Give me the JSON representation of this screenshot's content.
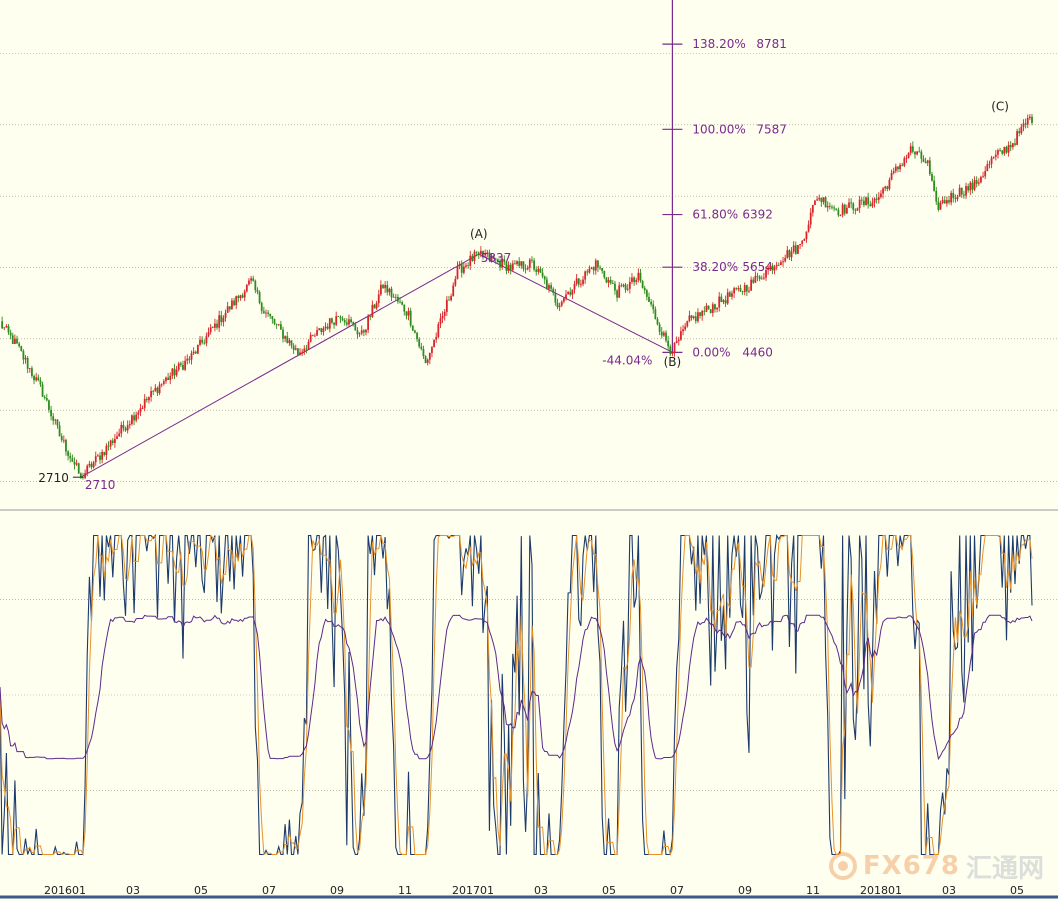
{
  "chart_data": [
    {
      "type": "candlestick",
      "colors": {
        "up": "#d9242b",
        "down": "#2e8b1e",
        "wave": "#7a2a8c",
        "fib": "#7a2a8c",
        "grid": "#9a9a80"
      },
      "price_range": [
        2250,
        9400
      ],
      "grid_levels": [
        2650,
        3650,
        4650,
        5650,
        6650,
        7650,
        8650
      ],
      "control_points": [
        [
          0,
          4870
        ],
        [
          8,
          4550
        ],
        [
          20,
          3900
        ],
        [
          28,
          3300
        ],
        [
          38,
          2710
        ],
        [
          48,
          3050
        ],
        [
          62,
          3550
        ],
        [
          75,
          4000
        ],
        [
          90,
          4400
        ],
        [
          104,
          4950
        ],
        [
          118,
          5450
        ],
        [
          124,
          5050
        ],
        [
          140,
          4450
        ],
        [
          150,
          4750
        ],
        [
          160,
          5000
        ],
        [
          170,
          4700
        ],
        [
          180,
          5400
        ],
        [
          192,
          5000
        ],
        [
          200,
          4300
        ],
        [
          208,
          4950
        ],
        [
          215,
          5600
        ],
        [
          225,
          5850
        ],
        [
          240,
          5650
        ],
        [
          250,
          5700
        ],
        [
          256,
          5450
        ],
        [
          262,
          5150
        ],
        [
          270,
          5400
        ],
        [
          280,
          5700
        ],
        [
          290,
          5300
        ],
        [
          300,
          5500
        ],
        [
          306,
          5100
        ],
        [
          312,
          4680
        ],
        [
          316,
          4460
        ],
        [
          324,
          4900
        ],
        [
          340,
          5200
        ],
        [
          352,
          5400
        ],
        [
          368,
          5800
        ],
        [
          376,
          5950
        ],
        [
          384,
          6650
        ],
        [
          394,
          6450
        ],
        [
          412,
          6600
        ],
        [
          422,
          7050
        ],
        [
          428,
          7300
        ],
        [
          436,
          7100
        ],
        [
          440,
          6500
        ],
        [
          450,
          6700
        ],
        [
          458,
          6800
        ],
        [
          466,
          7150
        ],
        [
          476,
          7400
        ],
        [
          484,
          7750
        ]
      ],
      "waves": [
        {
          "from": [
            38,
            2710
          ],
          "to": [
            225,
            5837
          ]
        },
        {
          "from": [
            225,
            5837
          ],
          "to": [
            316,
            4460
          ]
        }
      ],
      "wave_labels": [
        {
          "text": "(A)",
          "at": [
            225,
            6060
          ]
        },
        {
          "text": "(B)",
          "at": [
            316,
            4270
          ]
        },
        {
          "text": "(C)",
          "at": [
            470,
            7850
          ]
        }
      ],
      "low_marker": {
        "left_label": "2710",
        "right_label": "2710",
        "value": 2710
      },
      "peak_label": "5837",
      "retracement_label": "-44.04%",
      "fibonacci": {
        "base_value": 4460,
        "levels": [
          {
            "ratio": "0.00%",
            "value": "4460",
            "price": 4460
          },
          {
            "ratio": "38.20%",
            "value": "5654",
            "price": 5654
          },
          {
            "ratio": "61.80%",
            "value": "6392",
            "price": 6392
          },
          {
            "ratio": "100.00%",
            "value": "7587",
            "price": 7587
          },
          {
            "ratio": "138.20%",
            "value": "8781",
            "price": 8781
          }
        ]
      }
    },
    {
      "type": "line",
      "ylim": [
        -8,
        108
      ],
      "grid_levels": [
        20,
        50,
        80
      ],
      "series": [
        {
          "color": "#1c3a6b"
        },
        {
          "color": "#e8922a"
        },
        {
          "color": "#5b2a8c"
        }
      ]
    }
  ],
  "x_axis": {
    "ticks": [
      "201601",
      "03",
      "05",
      "07",
      "09",
      "11",
      "201701",
      "03",
      "05",
      "07",
      "09",
      "11",
      "201801",
      "03",
      "05"
    ]
  },
  "watermark": {
    "brand": "FX678",
    "cn": "汇通网"
  }
}
